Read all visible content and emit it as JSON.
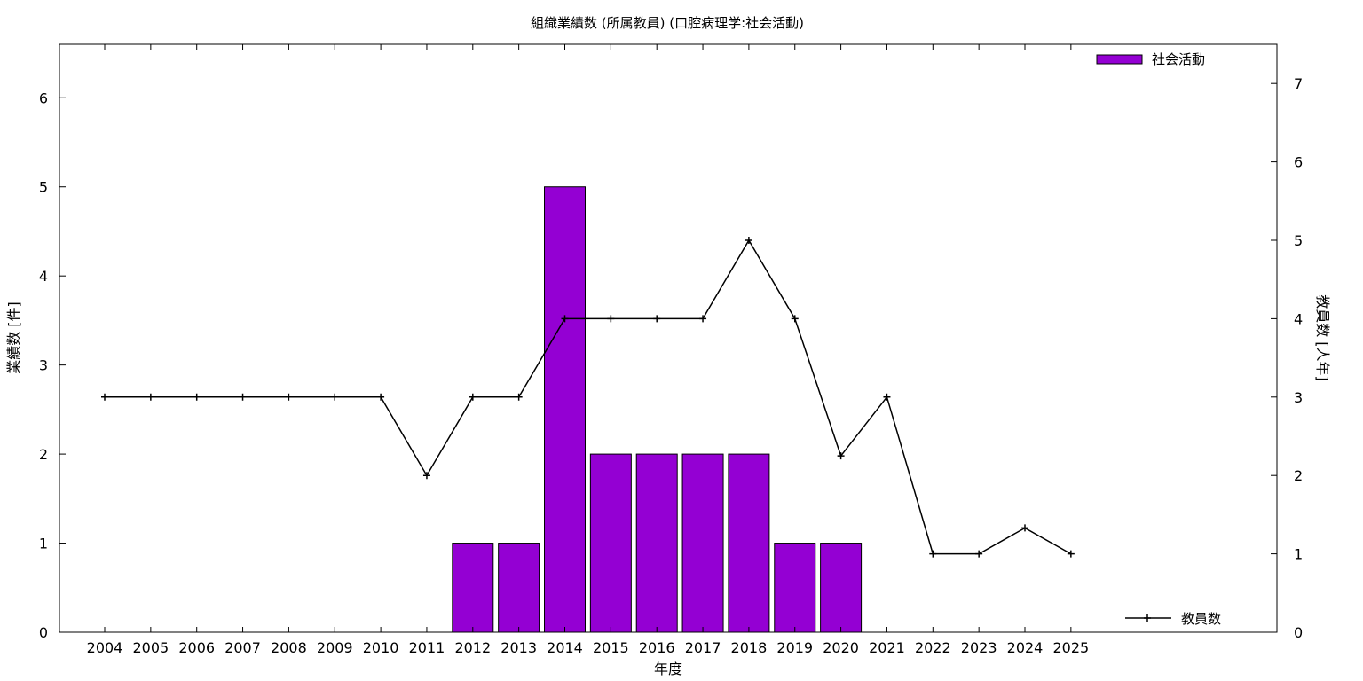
{
  "chart_data": {
    "type": "bar",
    "title": "組織業績数 (所属教員) (口腔病理学:社会活動)",
    "xlabel": "年度",
    "ylabel": "業績数 [件]",
    "y2label": "教員数 [人年]",
    "categories": [
      "2004",
      "2005",
      "2006",
      "2007",
      "2008",
      "2009",
      "2010",
      "2011",
      "2012",
      "2013",
      "2014",
      "2015",
      "2016",
      "2017",
      "2018",
      "2019",
      "2020",
      "2021",
      "2022",
      "2023",
      "2024",
      "2025"
    ],
    "ylim": [
      0,
      6.6
    ],
    "y2lim": [
      0,
      7.5
    ],
    "yticks": [
      "0",
      "1",
      "2",
      "3",
      "4",
      "5",
      "6"
    ],
    "y2ticks": [
      "0",
      "1",
      "2",
      "3",
      "4",
      "5",
      "6",
      "7"
    ],
    "grid": false,
    "series": [
      {
        "name": "社会活動",
        "type": "bar",
        "axis": "left",
        "color": "#9400d3",
        "values": [
          0,
          0,
          0,
          0,
          0,
          0,
          0,
          0,
          1,
          1,
          5,
          2,
          2,
          2,
          2,
          1,
          1,
          0,
          0,
          0,
          0,
          0
        ]
      },
      {
        "name": "教員数",
        "type": "line",
        "axis": "right",
        "color": "#000000",
        "marker": "plus",
        "values": [
          3,
          3,
          3,
          3,
          3,
          3,
          3,
          2,
          3,
          3,
          4,
          4,
          4,
          4,
          5,
          4,
          2.25,
          3,
          1,
          1,
          1.33,
          1
        ]
      }
    ],
    "legend": [
      {
        "label": "社会活動",
        "position": "top-right"
      },
      {
        "label": "教員数",
        "position": "bottom-right"
      }
    ]
  }
}
